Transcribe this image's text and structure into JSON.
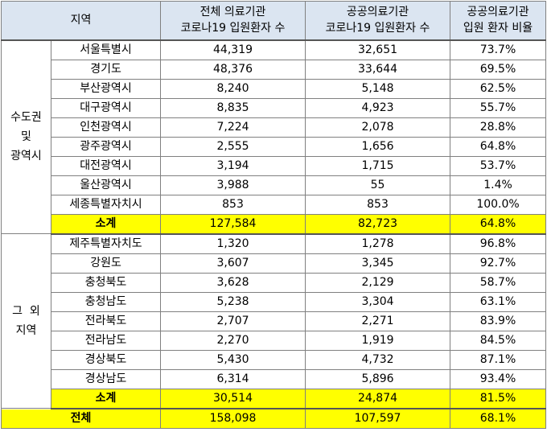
{
  "header": {
    "region": "지역",
    "total_line1": "전체 의료기관",
    "total_line2": "코로나19 입원환자 수",
    "public_line1": "공공의료기관",
    "public_line2": "코로나19 입원환자 수",
    "ratio_line1": "공공의료기관",
    "ratio_line2": "입원 환자 비율"
  },
  "groups": [
    {
      "name_lines": [
        "수도권",
        "및",
        "광역시"
      ],
      "rows": [
        {
          "region": "서울특별시",
          "total": "44,319",
          "public": "32,651",
          "ratio": "73.7%"
        },
        {
          "region": "경기도",
          "total": "48,376",
          "public": "33,644",
          "ratio": "69.5%"
        },
        {
          "region": "부산광역시",
          "total": "8,240",
          "public": "5,148",
          "ratio": "62.5%"
        },
        {
          "region": "대구광역시",
          "total": "8,835",
          "public": "4,923",
          "ratio": "55.7%"
        },
        {
          "region": "인천광역시",
          "total": "7,224",
          "public": "2,078",
          "ratio": "28.8%"
        },
        {
          "region": "광주광역시",
          "total": "2,555",
          "public": "1,656",
          "ratio": "64.8%"
        },
        {
          "region": "대전광역시",
          "total": "3,194",
          "public": "1,715",
          "ratio": "53.7%"
        },
        {
          "region": "울산광역시",
          "total": "3,988",
          "public": "55",
          "ratio": "1.4%"
        },
        {
          "region": "세종특별자치시",
          "total": "853",
          "public": "853",
          "ratio": "100.0%"
        }
      ],
      "subtotal": {
        "label": "소계",
        "total": "127,584",
        "public": "82,723",
        "ratio": "64.8%"
      }
    },
    {
      "name_lines": [
        "그  외",
        "지역"
      ],
      "rows": [
        {
          "region": "제주특별자치도",
          "total": "1,320",
          "public": "1,278",
          "ratio": "96.8%"
        },
        {
          "region": "강원도",
          "total": "3,607",
          "public": "3,345",
          "ratio": "92.7%"
        },
        {
          "region": "충청북도",
          "total": "3,628",
          "public": "2,129",
          "ratio": "58.7%"
        },
        {
          "region": "충청남도",
          "total": "5,238",
          "public": "3,304",
          "ratio": "63.1%"
        },
        {
          "region": "전라북도",
          "total": "2,707",
          "public": "2,271",
          "ratio": "83.9%"
        },
        {
          "region": "전라남도",
          "total": "2,270",
          "public": "1,919",
          "ratio": "84.5%"
        },
        {
          "region": "경상북도",
          "total": "5,430",
          "public": "4,732",
          "ratio": "87.1%"
        },
        {
          "region": "경상남도",
          "total": "6,314",
          "public": "5,896",
          "ratio": "93.4%"
        }
      ],
      "subtotal": {
        "label": "소계",
        "total": "30,514",
        "public": "24,874",
        "ratio": "81.5%"
      }
    }
  ],
  "grand_total": {
    "label": "전체",
    "total": "158,098",
    "public": "107,597",
    "ratio": "68.1%"
  }
}
